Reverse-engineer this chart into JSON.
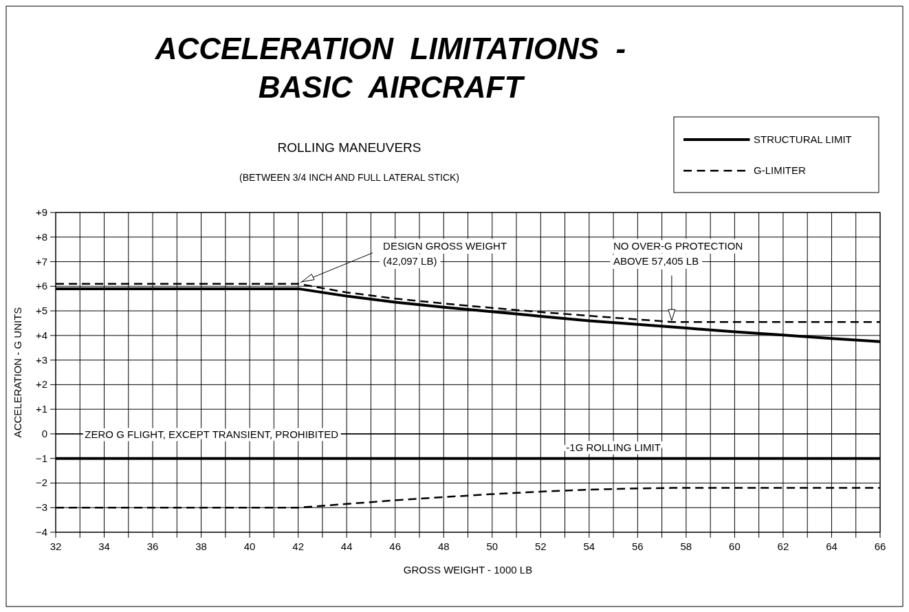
{
  "chart_data": {
    "type": "line",
    "title": "ACCELERATION  LIMITATIONS  -\nBASIC  AIRCRAFT",
    "subtitle": "ROLLING MANEUVERS",
    "xlabel": "GROSS WEIGHT - 1000 LB",
    "ylabel": "ACCELERATION - G UNITS",
    "series": [
      {
        "name": "STRUCTURAL LIMIT",
        "color": "#000000",
        "line_style": "solid",
        "x": [
          32,
          42,
          44,
          46,
          48,
          50,
          52,
          54,
          56,
          58,
          60,
          62,
          64,
          66
        ],
        "values": [
          5.9,
          5.9,
          5.6,
          5.35,
          5.15,
          4.97,
          4.78,
          4.6,
          4.45,
          4.3,
          4.15,
          4.02,
          3.88,
          3.75
        ]
      },
      {
        "name": "G-LIMITER",
        "color": "#000000",
        "line_style": "dashed",
        "x": [
          32,
          42,
          44,
          46,
          48,
          50,
          52,
          54,
          56,
          57.405,
          66
        ],
        "values": [
          6.1,
          6.1,
          5.75,
          5.5,
          5.3,
          5.12,
          4.95,
          4.8,
          4.65,
          4.55,
          4.55
        ]
      },
      {
        "color": "#000000",
        "line_style": "dashed",
        "x": [
          32,
          42,
          44,
          46,
          48,
          50,
          52,
          54,
          56,
          57.405,
          66
        ],
        "values": [
          -3,
          -3,
          -2.85,
          -2.7,
          -2.57,
          -2.45,
          -2.35,
          -2.27,
          -2.22,
          -2.2,
          -2.2
        ]
      }
    ],
    "ref_lines": [
      {
        "axis": "y",
        "value": -1,
        "label": "-1G ROLLING LIMIT",
        "color": "#000000",
        "line_style": "solid"
      },
      {
        "axis": "y",
        "value": 0,
        "label": "ZERO G FLIGHT, EXCEPT TRANSIENT, PROHIBITED",
        "color": "#000000",
        "line_style": "solid"
      }
    ],
    "annotations": [
      "(BETWEEN 3/4 INCH AND FULL LATERAL STICK)",
      {
        "text": "DESIGN GROSS WEIGHT\n(42,097 LB)",
        "x": 42.097,
        "y": 6.1
      },
      {
        "text": "NO OVER-G PROTECTION\nABOVE 57,405 LB",
        "x": 57.405,
        "y": 4.55
      }
    ],
    "xlim": [
      32,
      66
    ],
    "xticks": [
      32,
      {
        "value": 33,
        "label": null
      },
      34,
      {
        "value": 35,
        "label": null
      },
      36,
      {
        "value": 37,
        "label": null
      },
      38,
      {
        "value": 39,
        "label": null
      },
      40,
      {
        "value": 41,
        "label": null
      },
      42,
      {
        "value": 43,
        "label": null
      },
      44,
      {
        "value": 45,
        "label": null
      },
      46,
      {
        "value": 47,
        "label": null
      },
      48,
      {
        "value": 49,
        "label": null
      },
      50,
      {
        "value": 51,
        "label": null
      },
      52,
      {
        "value": 53,
        "label": null
      },
      54,
      {
        "value": 55,
        "label": null
      },
      56,
      {
        "value": 57,
        "label": null
      },
      58,
      {
        "value": 59,
        "label": null
      },
      60,
      {
        "value": 61,
        "label": null
      },
      62,
      {
        "value": 63,
        "label": null
      },
      64,
      {
        "value": 65,
        "label": null
      },
      66
    ],
    "ylim": [
      -4,
      9
    ],
    "yticks": [
      {
        "value": -4,
        "label": "−4"
      },
      {
        "value": -3,
        "label": "−3"
      },
      {
        "value": -2,
        "label": "−2"
      },
      {
        "value": -1,
        "label": "−1"
      },
      0,
      {
        "value": 1,
        "label": "+1"
      },
      {
        "value": 2,
        "label": "+2"
      },
      {
        "value": 3,
        "label": "+3"
      },
      {
        "value": 4,
        "label": "+4"
      },
      {
        "value": 5,
        "label": "+5"
      },
      {
        "value": 6,
        "label": "+6"
      },
      {
        "value": 7,
        "label": "+7"
      },
      {
        "value": 8,
        "label": "+8"
      },
      {
        "value": 9,
        "label": "+9"
      }
    ],
    "grid": true,
    "legend": "top right",
    "marker": "none"
  }
}
